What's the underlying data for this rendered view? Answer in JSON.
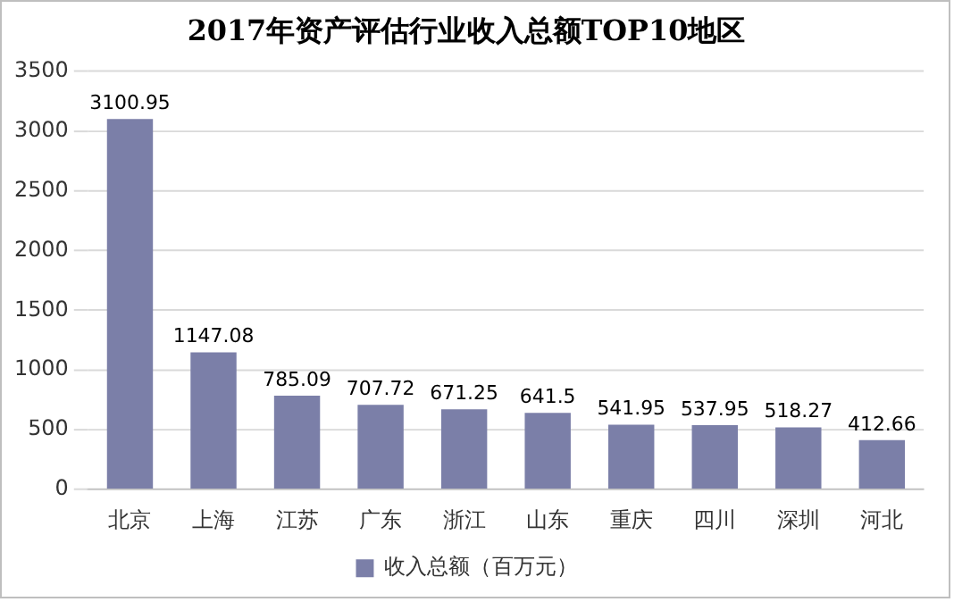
{
  "chart_data": {
    "type": "bar",
    "title": "2017年资产评估行业收入总额TOP10地区",
    "categories": [
      "北京",
      "上海",
      "江苏",
      "广东",
      "浙江",
      "山东",
      "重庆",
      "四川",
      "深圳",
      "河北"
    ],
    "series": [
      {
        "name": "收入总额（百万元）",
        "color": "#7b7fa8",
        "values": [
          3100.95,
          1147.08,
          785.09,
          707.72,
          671.25,
          641.5,
          541.95,
          537.95,
          518.27,
          412.66
        ]
      }
    ],
    "ylim": [
      0,
      3500
    ],
    "yticks": [
      0,
      500,
      1000,
      1500,
      2000,
      2500,
      3000,
      3500
    ],
    "grid": "y",
    "legend": "bottom",
    "data_labels": true
  }
}
